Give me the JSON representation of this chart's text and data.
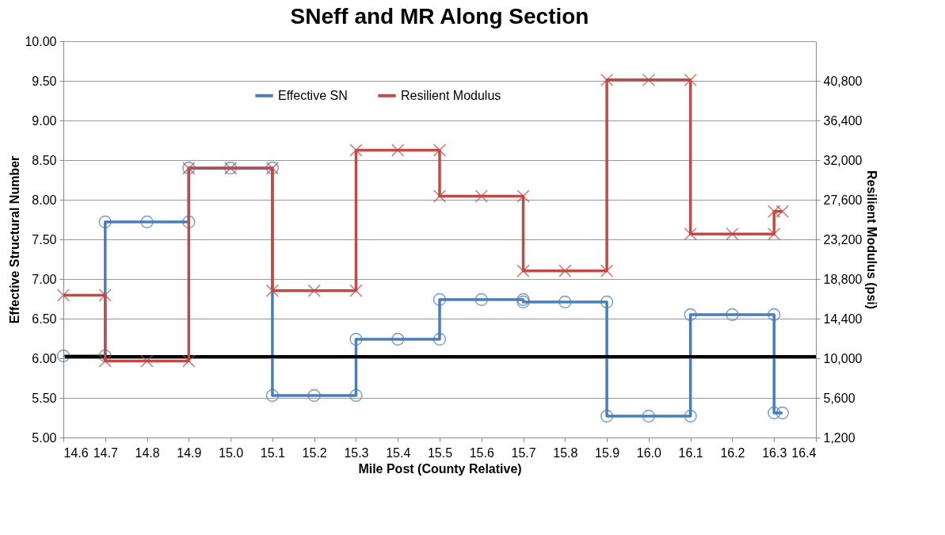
{
  "chart_data": {
    "type": "line",
    "title": "SNeff and MR Along Section",
    "xlabel": "Mile Post (County Relative)",
    "ylabel": "Effective Structural Number",
    "y2label": "Resilient Modulus (psi)",
    "xlim": [
      14.6,
      16.4
    ],
    "xticks": [
      14.6,
      14.7,
      14.8,
      14.9,
      {
        "value": 15,
        "label": "15.0"
      },
      15.1,
      15.2,
      15.3,
      15.4,
      15.5,
      15.6,
      15.7,
      15.8,
      15.9,
      {
        "value": 16,
        "label": "16.0"
      },
      16.1,
      16.2,
      16.3,
      16.4
    ],
    "ylim": [
      5.0,
      10.0
    ],
    "yticks": [
      {
        "value": 5,
        "label": "5.00"
      },
      {
        "value": 5.5,
        "label": "5.50"
      },
      {
        "value": 6,
        "label": "6.00"
      },
      {
        "value": 6.5,
        "label": "6.50"
      },
      {
        "value": 7,
        "label": "7.00"
      },
      {
        "value": 7.5,
        "label": "7.50"
      },
      {
        "value": 8,
        "label": "8.00"
      },
      {
        "value": 8.5,
        "label": "8.50"
      },
      {
        "value": 9,
        "label": "9.00"
      },
      {
        "value": 9.5,
        "label": "9.50"
      },
      {
        "value": 10,
        "label": "10.00"
      }
    ],
    "y2lim": [
      1200,
      45200
    ],
    "y2ticks": [
      {
        "value": 1200,
        "label": "1,200"
      },
      {
        "value": 5600,
        "label": "5,600"
      },
      {
        "value": 10000,
        "label": "10,000"
      },
      {
        "value": 14400,
        "label": "14,400"
      },
      {
        "value": 18800,
        "label": "18,800"
      },
      {
        "value": 23200,
        "label": "23,200"
      },
      {
        "value": 27600,
        "label": "27,600"
      },
      {
        "value": 32000,
        "label": "32,000"
      },
      {
        "value": 36400,
        "label": "36,400"
      },
      {
        "value": 40800,
        "label": "40,800"
      }
    ],
    "grid": "y",
    "legend": "top",
    "series": [
      {
        "name": "Effective SN",
        "color": "#4a7ebb",
        "marker": "circle",
        "x": [
          14.6,
          14.7,
          14.7,
          14.8,
          14.9,
          14.9,
          15.0,
          15.1,
          15.1,
          15.2,
          15.3,
          15.3,
          15.4,
          15.5,
          15.5,
          15.6,
          15.7,
          15.7,
          15.8,
          15.9,
          15.9,
          16.0,
          16.1,
          16.1,
          16.2,
          16.3,
          16.3,
          16.32
        ],
        "values": [
          6.03,
          6.03,
          7.72,
          7.72,
          7.72,
          8.4,
          8.4,
          8.4,
          5.53,
          5.53,
          5.53,
          6.24,
          6.24,
          6.24,
          6.74,
          6.74,
          6.74,
          6.71,
          6.71,
          6.71,
          5.27,
          5.27,
          5.27,
          6.55,
          6.55,
          6.55,
          5.31,
          5.31
        ]
      },
      {
        "name": "Resilient Modulus",
        "color": "#be4b48",
        "marker": "cross",
        "axis": "y2",
        "x": [
          14.6,
          14.7,
          14.7,
          14.8,
          14.9,
          14.9,
          15.0,
          15.1,
          15.1,
          15.2,
          15.3,
          15.3,
          15.4,
          15.5,
          15.5,
          15.6,
          15.7,
          15.7,
          15.8,
          15.9,
          15.9,
          16.0,
          16.1,
          16.1,
          16.2,
          16.3,
          16.3,
          16.32
        ],
        "values": [
          17000,
          17000,
          9700,
          9700,
          9700,
          31100,
          31100,
          31100,
          17500,
          17500,
          17500,
          33100,
          33100,
          33100,
          28000,
          28000,
          28000,
          19700,
          19700,
          19700,
          40900,
          40900,
          40900,
          23800,
          23800,
          23800,
          26300,
          26300
        ]
      }
    ],
    "ref_lines": [
      {
        "axis": "y",
        "value": 6.02,
        "color": "#000000"
      }
    ]
  }
}
